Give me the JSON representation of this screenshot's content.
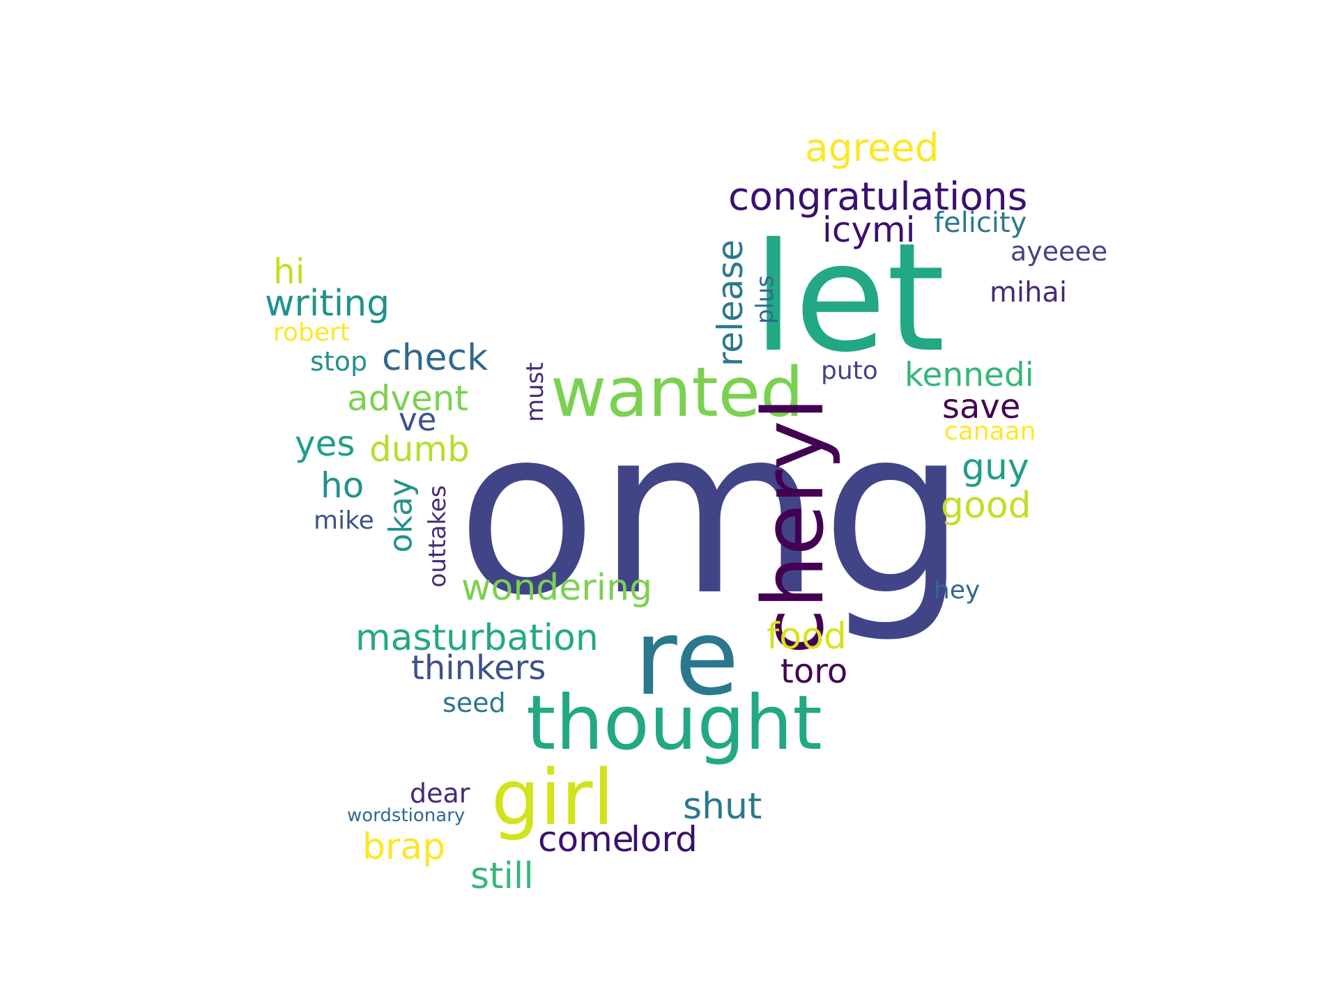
{
  "words": [
    {
      "text": "omg",
      "color": "#414487"
    },
    {
      "text": "let",
      "color": "#22a884"
    },
    {
      "text": "wanted",
      "color": "#7ad151"
    },
    {
      "text": "re",
      "color": "#2a788e"
    },
    {
      "text": "thought",
      "color": "#22a884"
    },
    {
      "text": "cheryl",
      "color": "#440154"
    },
    {
      "text": "girl",
      "color": "#d2e21b"
    },
    {
      "text": "congratulations",
      "color": "#3b0f70"
    },
    {
      "text": "agreed",
      "color": "#fde725"
    },
    {
      "text": "icymi",
      "color": "#3b0f70"
    },
    {
      "text": "felicity",
      "color": "#2a788e"
    },
    {
      "text": "ayeeee",
      "color": "#414487"
    },
    {
      "text": "mihai",
      "color": "#482878"
    },
    {
      "text": "release",
      "color": "#2a788e"
    },
    {
      "text": "plus",
      "color": "#31688e"
    },
    {
      "text": "hi",
      "color": "#c2df23"
    },
    {
      "text": "writing",
      "color": "#21918c"
    },
    {
      "text": "robert",
      "color": "#fde725"
    },
    {
      "text": "stop",
      "color": "#21918c"
    },
    {
      "text": "check",
      "color": "#31688e"
    },
    {
      "text": "advent",
      "color": "#7ad151"
    },
    {
      "text": "ve",
      "color": "#3b528b"
    },
    {
      "text": "yes",
      "color": "#1f9e89"
    },
    {
      "text": "dumb",
      "color": "#b5de2b"
    },
    {
      "text": "ho",
      "color": "#21918c"
    },
    {
      "text": "mike",
      "color": "#3b528b"
    },
    {
      "text": "okay",
      "color": "#21918c"
    },
    {
      "text": "outtakes",
      "color": "#482878"
    },
    {
      "text": "must",
      "color": "#482878"
    },
    {
      "text": "puto",
      "color": "#414487"
    },
    {
      "text": "kennedi",
      "color": "#35b779"
    },
    {
      "text": "save",
      "color": "#440154"
    },
    {
      "text": "canaan",
      "color": "#fde725"
    },
    {
      "text": "guy",
      "color": "#1f9e89"
    },
    {
      "text": "good",
      "color": "#c2df23"
    },
    {
      "text": "hey",
      "color": "#31688e"
    },
    {
      "text": "wondering",
      "color": "#7ad151"
    },
    {
      "text": "masturbation",
      "color": "#22a884"
    },
    {
      "text": "food",
      "color": "#d8e219"
    },
    {
      "text": "thinkers",
      "color": "#3b528b"
    },
    {
      "text": "toro",
      "color": "#440154"
    },
    {
      "text": "seed",
      "color": "#2a788e"
    },
    {
      "text": "dear",
      "color": "#482878"
    },
    {
      "text": "wordstionary",
      "color": "#31688e"
    },
    {
      "text": "shut",
      "color": "#2a788e"
    },
    {
      "text": "brap",
      "color": "#fde725"
    },
    {
      "text": "come",
      "color": "#3b0f70"
    },
    {
      "text": "lord",
      "color": "#3b0f70"
    },
    {
      "text": "still",
      "color": "#35b779"
    }
  ]
}
